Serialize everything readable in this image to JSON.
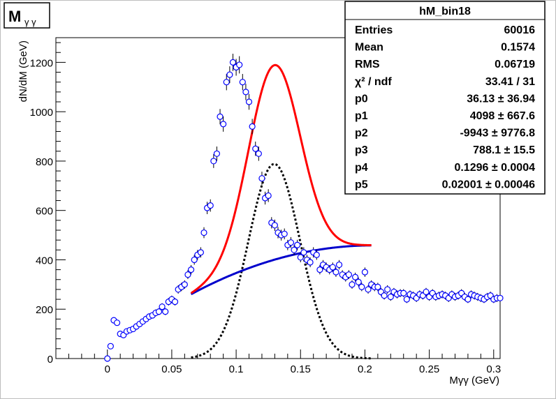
{
  "title": {
    "main": "M",
    "sub": "γ γ"
  },
  "stats": {
    "name": "hM_bin18",
    "rows": [
      {
        "label": "Entries",
        "value": "60016"
      },
      {
        "label": "Mean",
        "value": "0.1574"
      },
      {
        "label": "RMS",
        "value": "0.06719"
      },
      {
        "label": "χ² / ndf",
        "value": "33.41 / 31"
      },
      {
        "label": "p0",
        "value": "36.13 ± 36.94"
      },
      {
        "label": "p1",
        "value": "4098 ± 667.6"
      },
      {
        "label": "p2",
        "value": "-9943 ± 9776.8"
      },
      {
        "label": "p3",
        "value": "788.1 ± 15.5"
      },
      {
        "label": "p4",
        "value": "0.1296 ± 0.0004"
      },
      {
        "label": "p5",
        "value": "0.02001 ± 0.00046"
      }
    ]
  },
  "chart_data": {
    "type": "scatter",
    "xlabel": "Mγγ (GeV)",
    "ylabel": "dN/dM (GeV)",
    "xlim": [
      -0.04,
      0.305
    ],
    "ylim": [
      0,
      1300
    ],
    "xticks": [
      0,
      0.05,
      0.1,
      0.15,
      0.2,
      0.25,
      0.3
    ],
    "xtick_labels": [
      "0",
      "0.05",
      "0.1",
      "0.15",
      "0.2",
      "0.25",
      "0.3"
    ],
    "yticks": [
      0,
      200,
      400,
      600,
      800,
      1000,
      1200
    ],
    "ytick_labels": [
      "0",
      "200",
      "400",
      "600",
      "800",
      "1000",
      "1200"
    ],
    "grid": false,
    "colors": {
      "points": "#0000ff",
      "total_fit": "#ff0000",
      "background_fit": "#0000cc",
      "signal_fit": "#000000"
    },
    "series": [
      {
        "kind": "points",
        "x": [
          0.0,
          0.0025,
          0.005,
          0.0075,
          0.01,
          0.0125,
          0.015,
          0.0175,
          0.02,
          0.0225,
          0.025,
          0.0275,
          0.03,
          0.0325,
          0.035,
          0.0375,
          0.04,
          0.0425,
          0.045,
          0.0475,
          0.05,
          0.0525,
          0.055,
          0.0575,
          0.06,
          0.0625,
          0.065,
          0.0675,
          0.07,
          0.0725,
          0.075,
          0.0775,
          0.08,
          0.0825,
          0.085,
          0.0875,
          0.09,
          0.0925,
          0.095,
          0.0975,
          0.1,
          0.1025,
          0.105,
          0.1075,
          0.11,
          0.1125,
          0.115,
          0.1175,
          0.12,
          0.1225,
          0.125,
          0.1275,
          0.13,
          0.1325,
          0.135,
          0.1375,
          0.14,
          0.1425,
          0.145,
          0.1475,
          0.15,
          0.1525,
          0.155,
          0.1575,
          0.16,
          0.1625,
          0.165,
          0.1675,
          0.17,
          0.1725,
          0.175,
          0.1775,
          0.18,
          0.1825,
          0.185,
          0.1875,
          0.19,
          0.1925,
          0.195,
          0.1975,
          0.2,
          0.2025,
          0.205,
          0.2075,
          0.21,
          0.2125,
          0.215,
          0.2175,
          0.22,
          0.2225,
          0.225,
          0.2275,
          0.23,
          0.2325,
          0.235,
          0.2375,
          0.24,
          0.2425,
          0.245,
          0.2475,
          0.25,
          0.2525,
          0.255,
          0.2575,
          0.26,
          0.2625,
          0.265,
          0.2675,
          0.27,
          0.2725,
          0.275,
          0.2775,
          0.28,
          0.2825,
          0.285,
          0.2875,
          0.29,
          0.2925,
          0.295,
          0.2975,
          0.3,
          0.3025,
          0.305
        ],
        "y": [
          0,
          50,
          155,
          145,
          100,
          95,
          110,
          115,
          120,
          130,
          140,
          150,
          160,
          170,
          175,
          185,
          190,
          210,
          190,
          230,
          240,
          230,
          280,
          290,
          300,
          340,
          360,
          400,
          420,
          430,
          510,
          610,
          620,
          800,
          830,
          980,
          950,
          1120,
          1150,
          1200,
          1180,
          1190,
          1120,
          1080,
          1040,
          940,
          850,
          830,
          730,
          650,
          660,
          550,
          540,
          510,
          500,
          505,
          460,
          470,
          440,
          460,
          410,
          430,
          400,
          390,
          430,
          420,
          360,
          380,
          370,
          360,
          370,
          350,
          380,
          340,
          330,
          340,
          300,
          330,
          310,
          290,
          350,
          280,
          300,
          290,
          290,
          270,
          255,
          280,
          250,
          270,
          260,
          265,
          265,
          240,
          260,
          255,
          245,
          260,
          255,
          270,
          250,
          265,
          250,
          255,
          260,
          255,
          245,
          260,
          250,
          255,
          265,
          250,
          240,
          260,
          255,
          250,
          245,
          240,
          250,
          255,
          240,
          245,
          245
        ],
        "yerr": [
          8,
          10,
          12,
          12,
          10,
          10,
          10,
          11,
          11,
          11,
          12,
          12,
          13,
          13,
          13,
          14,
          14,
          14,
          14,
          15,
          15,
          15,
          17,
          17,
          17,
          18,
          19,
          20,
          20,
          21,
          22,
          25,
          25,
          28,
          29,
          31,
          31,
          33,
          34,
          35,
          34,
          35,
          33,
          33,
          32,
          31,
          29,
          29,
          27,
          26,
          26,
          23,
          23,
          23,
          22,
          22,
          21,
          22,
          21,
          21,
          20,
          21,
          20,
          20,
          21,
          20,
          19,
          19,
          19,
          19,
          19,
          19,
          19,
          18,
          18,
          18,
          17,
          18,
          18,
          17,
          19,
          17,
          17,
          17,
          17,
          16,
          16,
          17,
          16,
          16,
          16,
          16,
          16,
          15,
          16,
          16,
          16,
          16,
          16,
          16,
          16,
          16,
          16,
          16,
          16,
          16,
          16,
          16,
          16,
          16,
          16,
          16,
          15,
          16,
          16,
          16,
          16,
          15,
          16,
          16,
          15,
          16,
          16
        ]
      }
    ]
  }
}
